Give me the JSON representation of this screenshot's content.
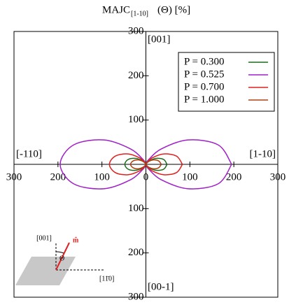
{
  "chart_data": {
    "type": "polar",
    "title": "MAJC",
    "title_subscript": "[1-10]",
    "title_suffix": "(Θ) [%]",
    "direction_labels": {
      "top": "[001]",
      "bottom": "[00-1]",
      "left": "[-110]",
      "right": "[1-10]"
    },
    "theta": [
      0,
      15,
      30,
      45,
      60,
      75,
      90,
      105,
      120,
      135,
      150,
      165,
      180,
      195,
      210,
      225,
      240,
      255,
      270,
      285,
      300,
      315,
      330,
      345,
      360
    ],
    "series": [
      {
        "name": "P = 0.300",
        "color": "#1a6b1a",
        "values": [
          48,
          42,
          27,
          12,
          3,
          0,
          0,
          0,
          3,
          12,
          27,
          42,
          48,
          42,
          27,
          12,
          3,
          0,
          0,
          0,
          3,
          12,
          27,
          42,
          48
        ]
      },
      {
        "name": "P = 0.525",
        "color": "#a020c8",
        "values": [
          195,
          170,
          110,
          49,
          12,
          1,
          0,
          1,
          12,
          49,
          110,
          170,
          195,
          170,
          110,
          49,
          12,
          1,
          0,
          1,
          12,
          49,
          110,
          170,
          195
        ]
      },
      {
        "name": "P = 0.700",
        "color": "#e02020",
        "values": [
          83,
          72,
          47,
          21,
          5,
          0,
          0,
          0,
          5,
          21,
          47,
          72,
          83,
          72,
          47,
          21,
          5,
          0,
          0,
          0,
          5,
          21,
          47,
          72,
          83
        ]
      },
      {
        "name": "P = 1.000",
        "color": "#b0400f",
        "values": [
          35,
          30,
          20,
          9,
          2,
          0,
          0,
          0,
          2,
          9,
          20,
          30,
          35,
          30,
          20,
          9,
          2,
          0,
          0,
          0,
          2,
          9,
          20,
          30,
          35
        ]
      }
    ],
    "xlim": [
      -300,
      300
    ],
    "ylim": [
      -300,
      300
    ],
    "xticks": [
      {
        "value": -300,
        "label": "300"
      },
      {
        "value": -200,
        "label": "200"
      },
      {
        "value": -100,
        "label": "100"
      },
      0,
      100,
      200,
      300
    ],
    "yticks": [
      {
        "value": -300,
        "label": "300"
      },
      {
        "value": -200,
        "label": "200"
      },
      {
        "value": -100,
        "label": "100"
      },
      100,
      200,
      300
    ],
    "legend": "upper right",
    "inset": {
      "axis_label": "[001]",
      "angle_label": "Θ",
      "vector_label": "m̂",
      "plane_label": "[11̄0]"
    }
  }
}
